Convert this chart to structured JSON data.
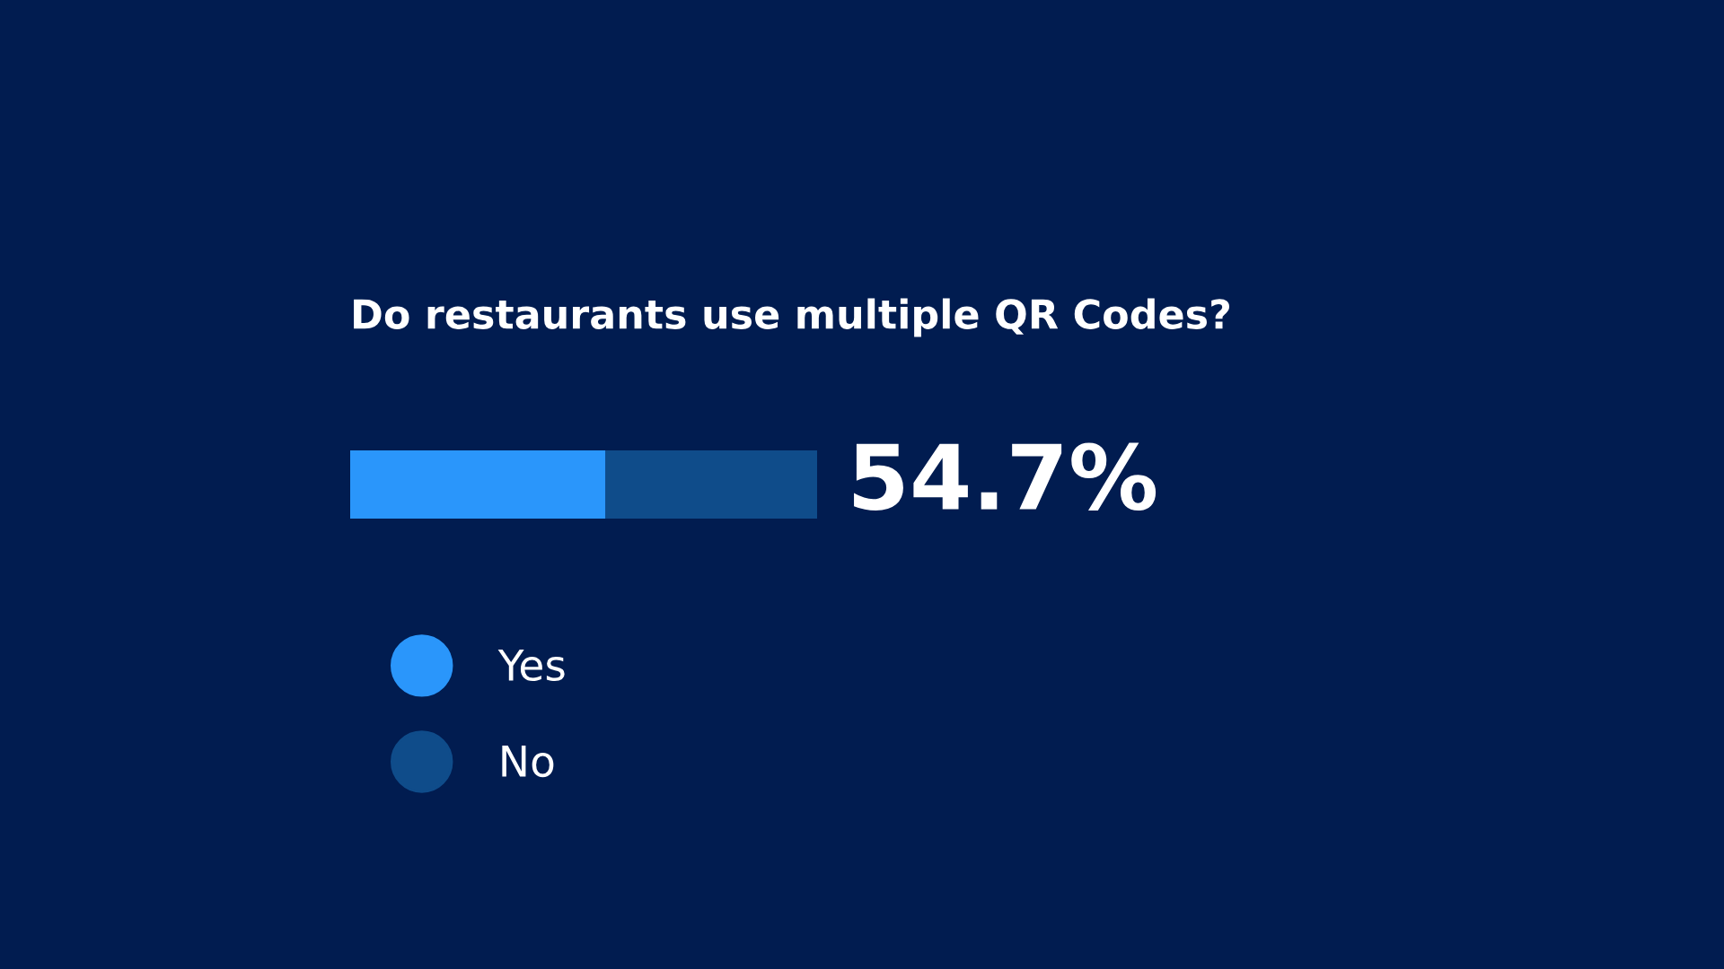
{
  "chart_data": {
    "type": "bar",
    "orientation": "horizontal",
    "stacked": true,
    "title": "Do restaurants use multiple QR Codes?",
    "categories": [
      null
    ],
    "xlim": [
      0,
      100
    ],
    "tick_labels": false,
    "legend": "bottom left",
    "series": [
      {
        "name": "Yes",
        "color": "#2a96fb",
        "values": [
          54.7
        ],
        "value_labels": [
          "54.7%"
        ]
      },
      {
        "name": "No",
        "color": "#0f4c8a",
        "values": [
          45.3
        ]
      }
    ]
  }
}
